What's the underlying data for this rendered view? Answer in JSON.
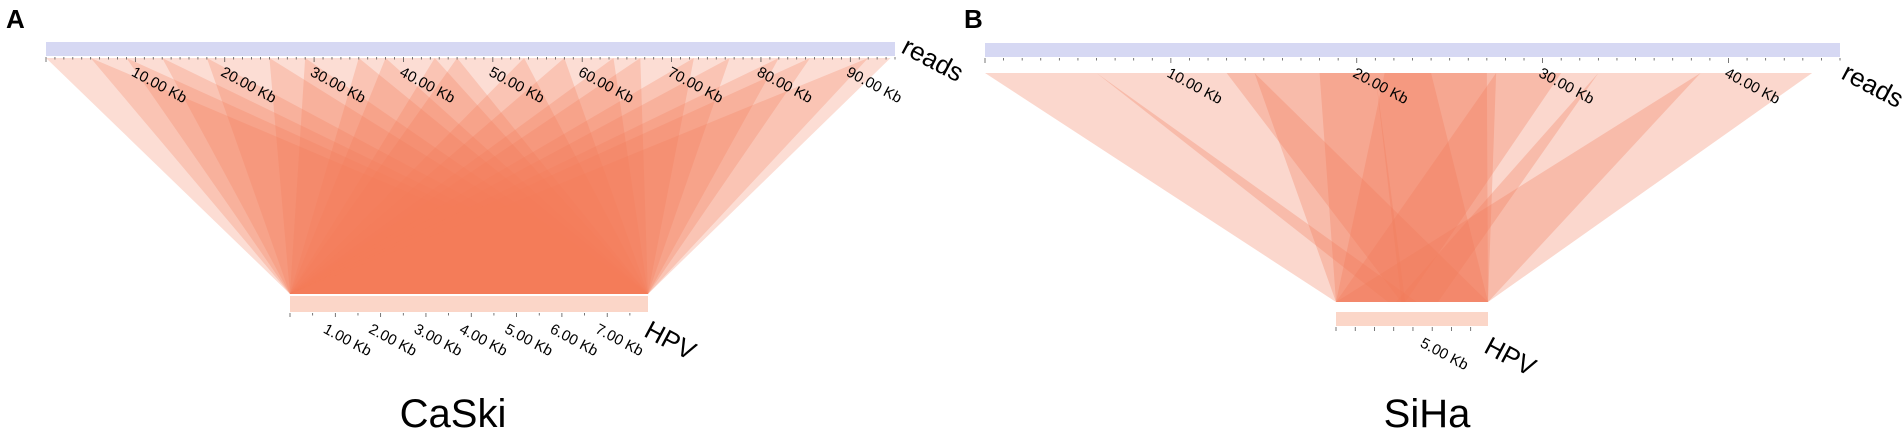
{
  "colors": {
    "reads_bar": "#d6d8f3",
    "hpv_bar": "#fbd6c8",
    "ribbon": "#f37a5a",
    "tick": "#555555"
  },
  "panels": [
    {
      "letter": "A",
      "sample": "CaSki",
      "reads": {
        "label": "reads",
        "max_kb": 95,
        "tick_step_kb": 1,
        "labels": [
          {
            "kb": 10,
            "text": "10.00 Kb"
          },
          {
            "kb": 20,
            "text": "20.00 Kb"
          },
          {
            "kb": 30,
            "text": "30.00 Kb"
          },
          {
            "kb": 40,
            "text": "40.00 Kb"
          },
          {
            "kb": 50,
            "text": "50.00 Kb"
          },
          {
            "kb": 60,
            "text": "60.00 Kb"
          },
          {
            "kb": 70,
            "text": "70.00 Kb"
          },
          {
            "kb": 80,
            "text": "80.00 Kb"
          },
          {
            "kb": 90,
            "text": "90.00 Kb"
          }
        ]
      },
      "hpv": {
        "label": "HPV",
        "max_kb": 7.9,
        "tick_step_kb": 0.5,
        "labels": [
          {
            "kb": 1,
            "text": "1.00 Kb"
          },
          {
            "kb": 2,
            "text": "2.00 Kb"
          },
          {
            "kb": 3,
            "text": "3.00 Kb"
          },
          {
            "kb": 4,
            "text": "4.00 Kb"
          },
          {
            "kb": 5,
            "text": "5.00 Kb"
          },
          {
            "kb": 6,
            "text": "6.00 Kb"
          },
          {
            "kb": 7,
            "text": "7.00 Kb"
          }
        ]
      },
      "links": [
        {
          "read_kb": [
            0.0,
            5.0
          ],
          "hpv_kb": [
            0.0,
            7.9
          ]
        },
        {
          "read_kb": [
            5.0,
            9.0
          ],
          "hpv_kb": [
            0.0,
            7.9
          ]
        },
        {
          "read_kb": [
            9.0,
            13.0
          ],
          "hpv_kb": [
            0.0,
            7.9
          ]
        },
        {
          "read_kb": [
            13.0,
            18.0
          ],
          "hpv_kb": [
            0.0,
            7.9
          ]
        },
        {
          "read_kb": [
            18.0,
            25.0
          ],
          "hpv_kb": [
            0.0,
            7.9
          ]
        },
        {
          "read_kb": [
            25.0,
            29.0
          ],
          "hpv_kb": [
            0.0,
            7.9
          ]
        },
        {
          "read_kb": [
            29.0,
            35.0
          ],
          "hpv_kb": [
            0.0,
            7.9
          ]
        },
        {
          "read_kb": [
            35.0,
            38.0
          ],
          "hpv_kb": [
            0.0,
            7.9
          ]
        },
        {
          "read_kb": [
            38.0,
            43.5
          ],
          "hpv_kb": [
            0.0,
            7.9
          ]
        },
        {
          "read_kb": [
            43.5,
            46.0
          ],
          "hpv_kb": [
            0.0,
            7.9
          ]
        },
        {
          "read_kb": [
            46.0,
            53.5
          ],
          "hpv_kb": [
            0.0,
            7.9
          ]
        },
        {
          "read_kb": [
            53.5,
            58.0
          ],
          "hpv_kb": [
            0.0,
            7.9
          ]
        },
        {
          "read_kb": [
            58.0,
            63.5
          ],
          "hpv_kb": [
            0.0,
            7.9
          ]
        },
        {
          "read_kb": [
            63.5,
            66.5
          ],
          "hpv_kb": [
            0.0,
            7.9
          ]
        },
        {
          "read_kb": [
            66.5,
            72.5
          ],
          "hpv_kb": [
            0.0,
            7.9
          ]
        },
        {
          "read_kb": [
            72.5,
            76.5
          ],
          "hpv_kb": [
            0.0,
            7.9
          ]
        },
        {
          "read_kb": [
            76.5,
            82.0
          ],
          "hpv_kb": [
            0.0,
            7.9
          ]
        },
        {
          "read_kb": [
            82.0,
            85.5
          ],
          "hpv_kb": [
            0.0,
            7.9
          ]
        },
        {
          "read_kb": [
            85.5,
            92.0
          ],
          "hpv_kb": [
            0.0,
            7.9
          ]
        },
        {
          "read_kb": [
            92.0,
            94.5
          ],
          "hpv_kb": [
            0.0,
            7.9
          ]
        }
      ]
    },
    {
      "letter": "B",
      "sample": "SiHa",
      "reads": {
        "label": "reads",
        "max_kb": 46,
        "tick_step_kb": 1,
        "labels": [
          {
            "kb": 10,
            "text": "10.00 Kb"
          },
          {
            "kb": 20,
            "text": "20.00 Kb"
          },
          {
            "kb": 30,
            "text": "30.00 Kb"
          },
          {
            "kb": 40,
            "text": "40.00 Kb"
          }
        ]
      },
      "hpv": {
        "label": "HPV",
        "max_kb": 7.9,
        "tick_step_kb": 1,
        "labels": [
          {
            "kb": 5,
            "text": "5.00 Kb"
          }
        ]
      },
      "links": [
        {
          "read_kb": [
            0.0,
            6.0
          ],
          "hpv_kb": [
            0.0,
            4.2
          ]
        },
        {
          "read_kb": [
            6.0,
            14.5
          ],
          "hpv_kb": [
            2.7,
            7.9
          ]
        },
        {
          "read_kb": [
            14.5,
            21.0
          ],
          "hpv_kb": [
            0.0,
            3.6
          ]
        },
        {
          "read_kb": [
            21.0,
            27.5
          ],
          "hpv_kb": [
            3.4,
            7.9
          ]
        },
        {
          "read_kb": [
            27.5,
            33.0
          ],
          "hpv_kb": [
            0.0,
            5.3
          ]
        },
        {
          "read_kb": [
            33.0,
            38.5
          ],
          "hpv_kb": [
            3.1,
            7.9
          ]
        },
        {
          "read_kb": [
            38.5,
            44.5
          ],
          "hpv_kb": [
            0.0,
            7.9
          ]
        },
        {
          "read_kb": [
            18.0,
            24.0
          ],
          "hpv_kb": [
            0.0,
            7.9
          ]
        },
        {
          "read_kb": [
            13.0,
            27.0
          ],
          "hpv_kb": [
            3.4,
            7.9
          ]
        },
        {
          "read_kb": [
            21.5,
            31.0
          ],
          "hpv_kb": [
            0.0,
            3.6
          ]
        }
      ]
    }
  ]
}
